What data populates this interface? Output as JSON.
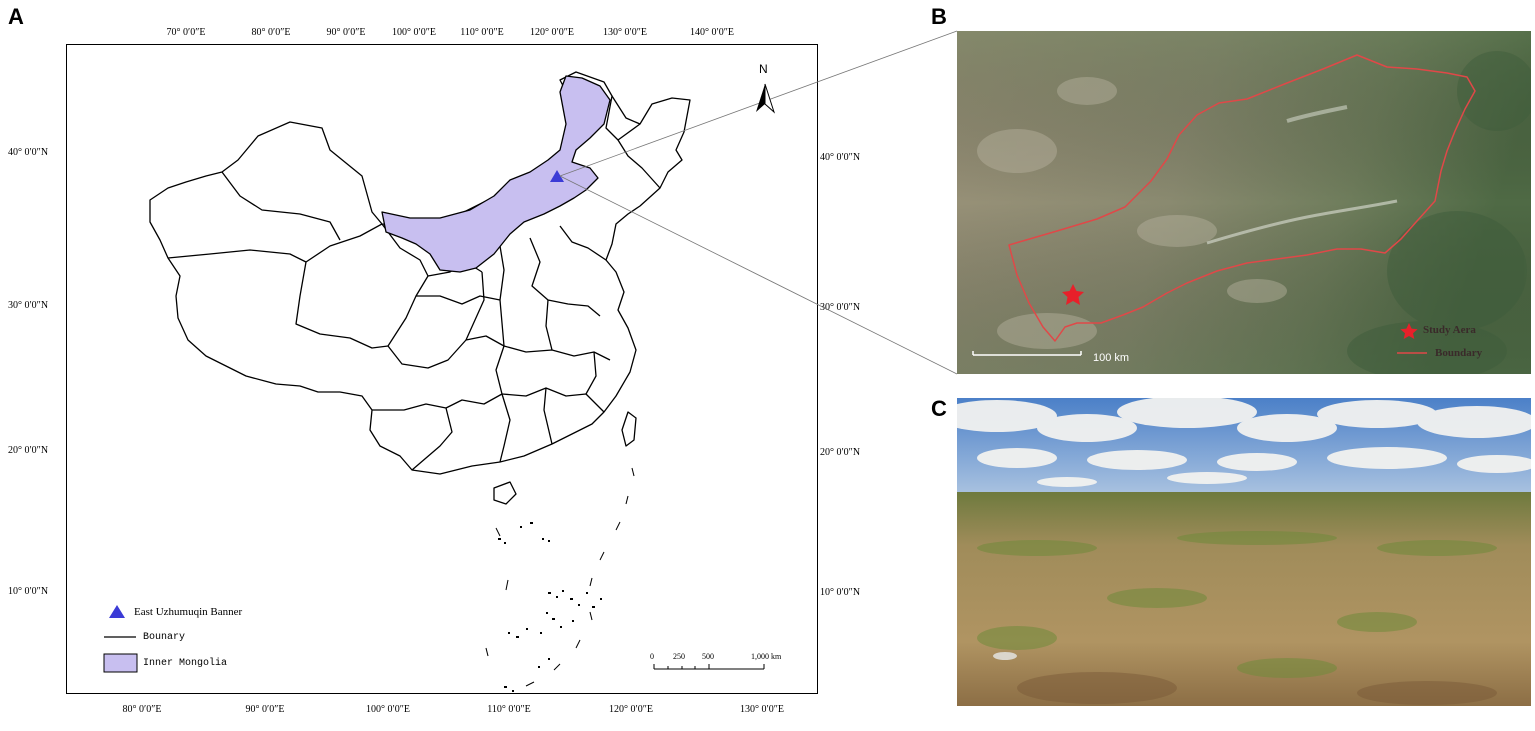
{
  "panels": {
    "a": "A",
    "b": "B",
    "c": "C"
  },
  "colors": {
    "inner_mongolia_fill": "#c8bff0",
    "banner_marker": "#3b3bd6",
    "study_star": "#e8202a",
    "boundary_line": "#e04848",
    "boundary_legend_line": "#000000"
  },
  "map_a": {
    "top_lon_labels": [
      "70° 0′0″E",
      "80° 0′0″E",
      "90° 0′0″E",
      "100° 0′0″E",
      "110° 0′0″E",
      "120° 0′0″E",
      "130° 0′0″E",
      "140° 0′0″E"
    ],
    "bottom_lon_labels": [
      "80° 0′0″E",
      "90° 0′0″E",
      "100° 0′0″E",
      "110° 0′0″E",
      "120° 0′0″E",
      "130° 0′0″E"
    ],
    "left_lat_labels": [
      "40° 0′0″N",
      "30° 0′0″N",
      "20° 0′0″N",
      "10° 0′0″N"
    ],
    "right_lat_labels": [
      "40° 0′0″N",
      "30° 0′0″N",
      "20° 0′0″N",
      "10° 0′0″N"
    ],
    "north_arrow_label": "N",
    "legend": {
      "banner": "East Uzhumuqin Banner",
      "boundary": "Bounary",
      "region": "Inner Mongolia"
    },
    "scale": {
      "ticks": [
        "0",
        "250",
        "500",
        "1,000 km"
      ]
    }
  },
  "map_b": {
    "scale_label": "100 km",
    "legend": {
      "study_area": "Study Aera",
      "boundary": "Boundary"
    }
  }
}
